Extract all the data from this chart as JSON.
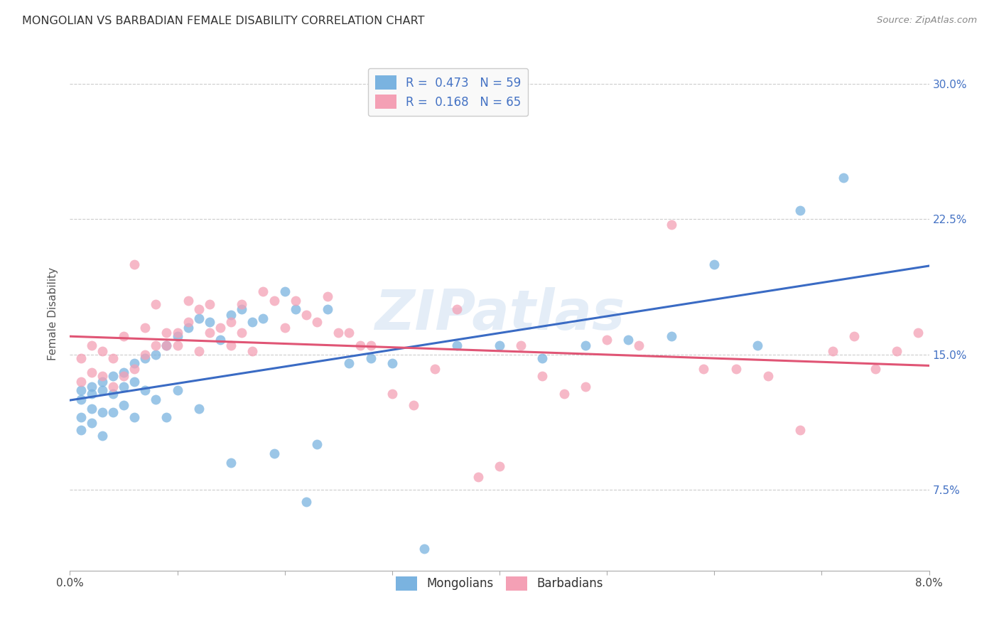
{
  "title": "MONGOLIAN VS BARBADIAN FEMALE DISABILITY CORRELATION CHART",
  "source": "Source: ZipAtlas.com",
  "ylabel": "Female Disability",
  "ytick_labels": [
    "7.5%",
    "15.0%",
    "22.5%",
    "30.0%"
  ],
  "ytick_values": [
    0.075,
    0.15,
    0.225,
    0.3
  ],
  "xlim": [
    0.0,
    0.08
  ],
  "ylim": [
    0.03,
    0.315
  ],
  "mongolian_color": "#7ab3e0",
  "barbadian_color": "#f4a0b5",
  "mongolian_line_color": "#3a6bc4",
  "barbadian_line_color": "#e05575",
  "background_color": "#ffffff",
  "watermark": "ZIPatlas",
  "mongolian_R": 0.473,
  "mongolian_N": 59,
  "barbadian_R": 0.168,
  "barbadian_N": 65,
  "mongolians_x": [
    0.001,
    0.001,
    0.001,
    0.001,
    0.002,
    0.002,
    0.002,
    0.002,
    0.003,
    0.003,
    0.003,
    0.003,
    0.004,
    0.004,
    0.004,
    0.005,
    0.005,
    0.005,
    0.006,
    0.006,
    0.006,
    0.007,
    0.007,
    0.008,
    0.008,
    0.009,
    0.009,
    0.01,
    0.01,
    0.011,
    0.012,
    0.012,
    0.013,
    0.014,
    0.015,
    0.015,
    0.016,
    0.017,
    0.018,
    0.019,
    0.02,
    0.021,
    0.022,
    0.023,
    0.024,
    0.026,
    0.028,
    0.03,
    0.033,
    0.036,
    0.04,
    0.044,
    0.048,
    0.052,
    0.056,
    0.06,
    0.064,
    0.068,
    0.072
  ],
  "mongolians_y": [
    0.13,
    0.125,
    0.115,
    0.108,
    0.132,
    0.128,
    0.12,
    0.112,
    0.135,
    0.13,
    0.118,
    0.105,
    0.138,
    0.128,
    0.118,
    0.14,
    0.132,
    0.122,
    0.145,
    0.135,
    0.115,
    0.148,
    0.13,
    0.15,
    0.125,
    0.155,
    0.115,
    0.16,
    0.13,
    0.165,
    0.17,
    0.12,
    0.168,
    0.158,
    0.172,
    0.09,
    0.175,
    0.168,
    0.17,
    0.095,
    0.185,
    0.175,
    0.068,
    0.1,
    0.175,
    0.145,
    0.148,
    0.145,
    0.042,
    0.155,
    0.155,
    0.148,
    0.155,
    0.158,
    0.16,
    0.2,
    0.155,
    0.23,
    0.248
  ],
  "barbadians_x": [
    0.001,
    0.001,
    0.002,
    0.002,
    0.003,
    0.003,
    0.004,
    0.004,
    0.005,
    0.005,
    0.006,
    0.006,
    0.007,
    0.007,
    0.008,
    0.008,
    0.009,
    0.009,
    0.01,
    0.01,
    0.011,
    0.011,
    0.012,
    0.012,
    0.013,
    0.013,
    0.014,
    0.015,
    0.015,
    0.016,
    0.016,
    0.017,
    0.018,
    0.019,
    0.02,
    0.021,
    0.022,
    0.023,
    0.024,
    0.025,
    0.026,
    0.027,
    0.028,
    0.03,
    0.032,
    0.034,
    0.036,
    0.038,
    0.04,
    0.042,
    0.044,
    0.046,
    0.048,
    0.05,
    0.053,
    0.056,
    0.059,
    0.062,
    0.065,
    0.068,
    0.071,
    0.073,
    0.075,
    0.077,
    0.079
  ],
  "barbadians_y": [
    0.135,
    0.148,
    0.14,
    0.155,
    0.138,
    0.152,
    0.132,
    0.148,
    0.138,
    0.16,
    0.142,
    0.2,
    0.15,
    0.165,
    0.155,
    0.178,
    0.162,
    0.155,
    0.162,
    0.155,
    0.168,
    0.18,
    0.152,
    0.175,
    0.162,
    0.178,
    0.165,
    0.168,
    0.155,
    0.162,
    0.178,
    0.152,
    0.185,
    0.18,
    0.165,
    0.18,
    0.172,
    0.168,
    0.182,
    0.162,
    0.162,
    0.155,
    0.155,
    0.128,
    0.122,
    0.142,
    0.175,
    0.082,
    0.088,
    0.155,
    0.138,
    0.128,
    0.132,
    0.158,
    0.155,
    0.222,
    0.142,
    0.142,
    0.138,
    0.108,
    0.152,
    0.16,
    0.142,
    0.152,
    0.162
  ]
}
